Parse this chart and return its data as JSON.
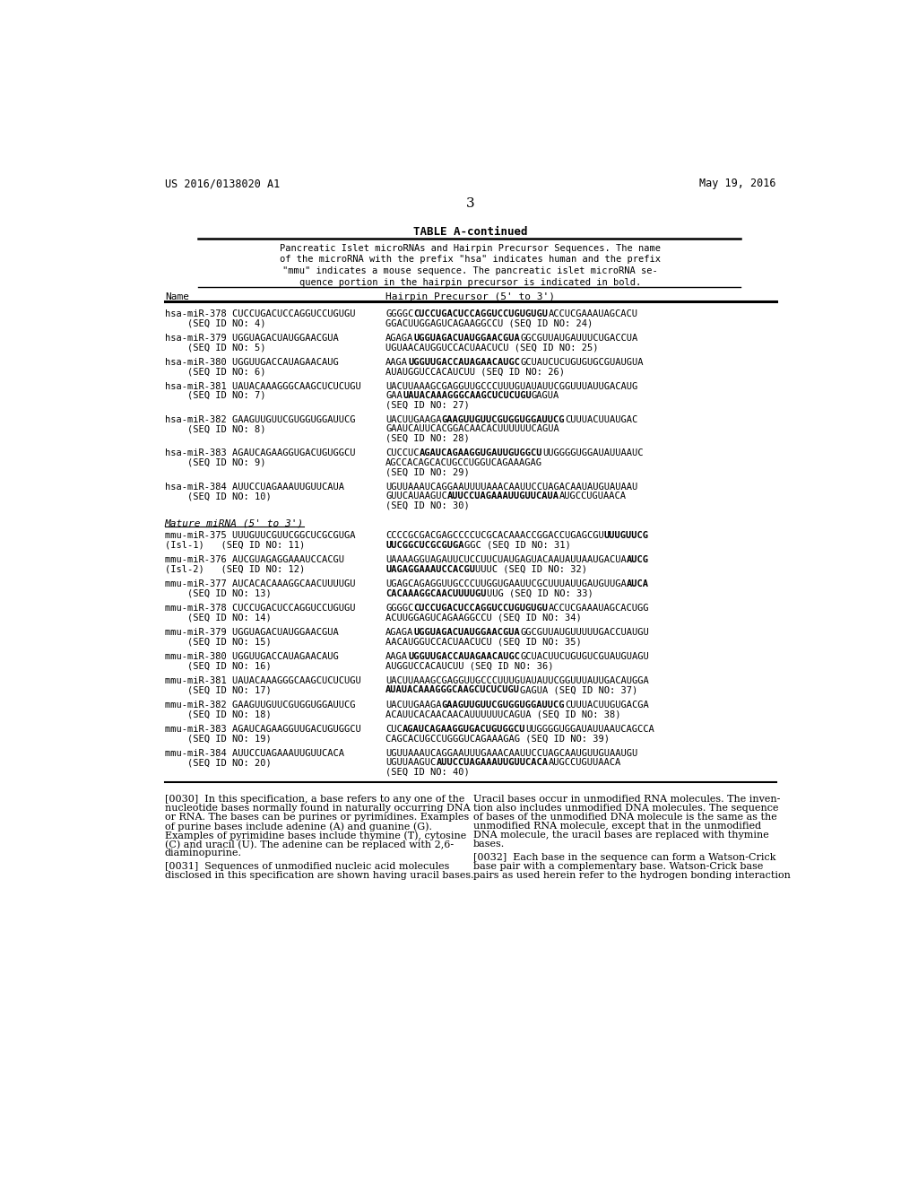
{
  "bg_color": "#ffffff",
  "header_left": "US 2016/0138020 A1",
  "header_right": "May 19, 2016",
  "page_number": "3",
  "table_title": "TABLE A-continued",
  "table_desc": [
    "Pancreatic Islet microRNAs and Hairpin Precursor Sequences. The name",
    "of the microRNA with the prefix \"hsa\" indicates human and the prefix",
    "\"mmu\" indicates a mouse sequence. The pancreatic islet microRNA se-",
    "quence portion in the hairpin precursor is indicated in bold."
  ],
  "col1_header": "Name",
  "col2_header": "Hairpin Precursor (5' to 3')",
  "mature_header": "Mature miRNA (5' to 3')",
  "footer_col1": [
    "[0030]  In this specification, a base refers to any one of the",
    "nucleotide bases normally found in naturally occurring DNA",
    "or RNA. The bases can be purines or pyrimidines. Examples",
    "of purine bases include adenine (A) and guanine (G).",
    "Examples of pyrimidine bases include thymine (T), cytosine",
    "(C) and uracil (U). The adenine can be replaced with 2,6-",
    "diaminopurine.",
    "",
    "[0031]  Sequences of unmodified nucleic acid molecules",
    "disclosed in this specification are shown having uracil bases."
  ],
  "footer_col2": [
    "Uracil bases occur in unmodified RNA molecules. The inven-",
    "tion also includes unmodified DNA molecules. The sequence",
    "of bases of the unmodified DNA molecule is the same as the",
    "unmodified RNA molecule, except that in the unmodified",
    "DNA molecule, the uracil bases are replaced with thymine",
    "bases.",
    "",
    "[0032]  Each base in the sequence can form a Watson-Crick",
    "base pair with a complementary base. Watson-Crick base",
    "pairs as used herein refer to the hydrogen bonding interaction"
  ]
}
